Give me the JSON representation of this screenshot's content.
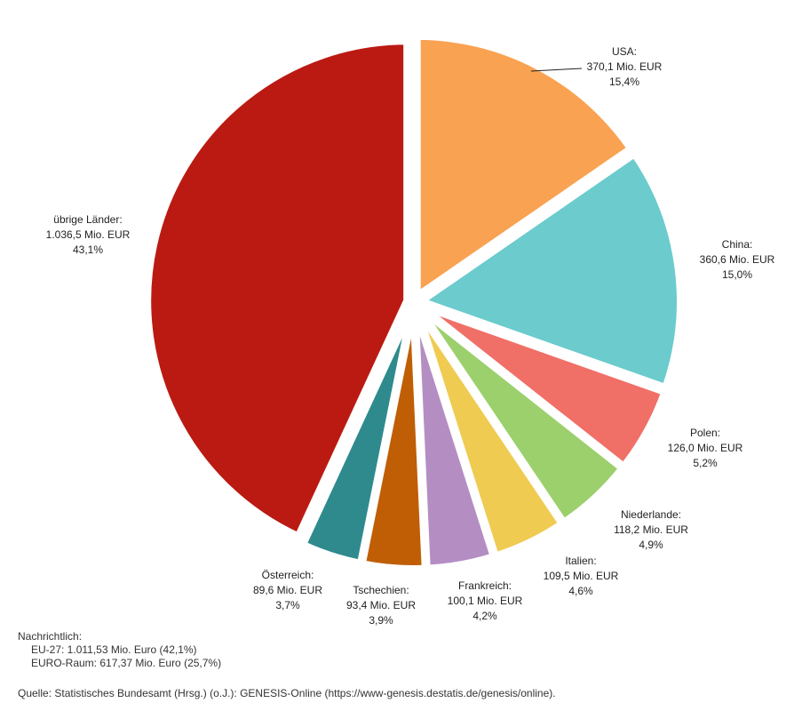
{
  "chart_data": {
    "type": "pie",
    "slices": [
      {
        "name": "USA:",
        "value_text": "370,1 Mio. EUR",
        "percent_text": "15,4%",
        "value": 370.1,
        "percent": 15.4,
        "color": "#F9A252"
      },
      {
        "name": "China:",
        "value_text": "360,6 Mio. EUR",
        "percent_text": "15,0%",
        "value": 360.6,
        "percent": 15.0,
        "color": "#6BCBCD"
      },
      {
        "name": "Polen:",
        "value_text": "126,0 Mio. EUR",
        "percent_text": "5,2%",
        "value": 126.0,
        "percent": 5.2,
        "color": "#F06F66"
      },
      {
        "name": "Niederlande:",
        "value_text": "118,2 Mio. EUR",
        "percent_text": "4,9%",
        "value": 118.2,
        "percent": 4.9,
        "color": "#9BD06C"
      },
      {
        "name": "Italien:",
        "value_text": "109,5 Mio. EUR",
        "percent_text": "4,6%",
        "value": 109.5,
        "percent": 4.6,
        "color": "#EFCB52"
      },
      {
        "name": "Frankreich:",
        "value_text": "100,1 Mio. EUR",
        "percent_text": "4,2%",
        "value": 100.1,
        "percent": 4.2,
        "color": "#B48EC3"
      },
      {
        "name": "Tschechien:",
        "value_text": "93,4 Mio. EUR",
        "percent_text": "3,9%",
        "value": 93.4,
        "percent": 3.9,
        "color": "#BF5E05"
      },
      {
        "name": "Österreich:",
        "value_text": "89,6 Mio. EUR",
        "percent_text": "3,7%",
        "value": 89.6,
        "percent": 3.7,
        "color": "#2E8A8D"
      },
      {
        "name": "übrige Länder:",
        "value_text": "1.036,5 Mio. EUR",
        "percent_text": "43,1%",
        "value": 1036.5,
        "percent": 43.1,
        "color": "#BB1A12"
      }
    ]
  },
  "note": {
    "heading": "Nachrichtlich:",
    "line1": "EU-27: 1.011,53 Mio. Euro (42,1%)",
    "line2": "EURO-Raum: 617,37 Mio. Euro (25,7%)"
  },
  "source": "Quelle: Statistisches Bundesamt (Hrsg.) (o.J.): GENESIS-Online (https://www-genesis.destatis.de/genesis/online)."
}
